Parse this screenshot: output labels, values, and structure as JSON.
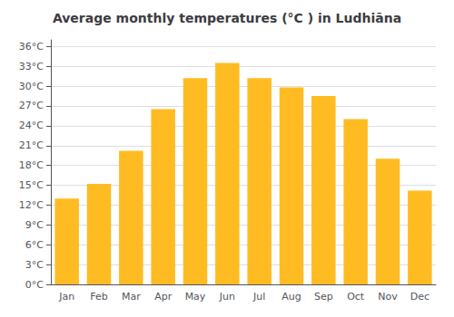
{
  "chart_data": {
    "type": "bar",
    "title": "Average monthly temperatures (°C ) in Ludhiāna",
    "categories": [
      "Jan",
      "Feb",
      "Mar",
      "Apr",
      "May",
      "Jun",
      "Jul",
      "Aug",
      "Sep",
      "Oct",
      "Nov",
      "Dec"
    ],
    "values": [
      13.0,
      15.2,
      20.2,
      26.5,
      31.2,
      33.5,
      31.2,
      29.8,
      28.5,
      25.0,
      19.0,
      14.2
    ],
    "color": "#FFBB22",
    "ylim": [
      0,
      37
    ],
    "yticks": [
      {
        "value": 0,
        "label": "0°C"
      },
      {
        "value": 3,
        "label": "3°C"
      },
      {
        "value": 6,
        "label": "6°C"
      },
      {
        "value": 9,
        "label": "9°C"
      },
      {
        "value": 12,
        "label": "12°C"
      },
      {
        "value": 15,
        "label": "15°C"
      },
      {
        "value": 18,
        "label": "18°C"
      },
      {
        "value": 21,
        "label": "21°C"
      },
      {
        "value": 24,
        "label": "24°C"
      },
      {
        "value": 27,
        "label": "27°C"
      },
      {
        "value": 30,
        "label": "30°C"
      },
      {
        "value": 33,
        "label": "33°C"
      },
      {
        "value": 36,
        "label": "36°C"
      }
    ],
    "grid": true
  }
}
